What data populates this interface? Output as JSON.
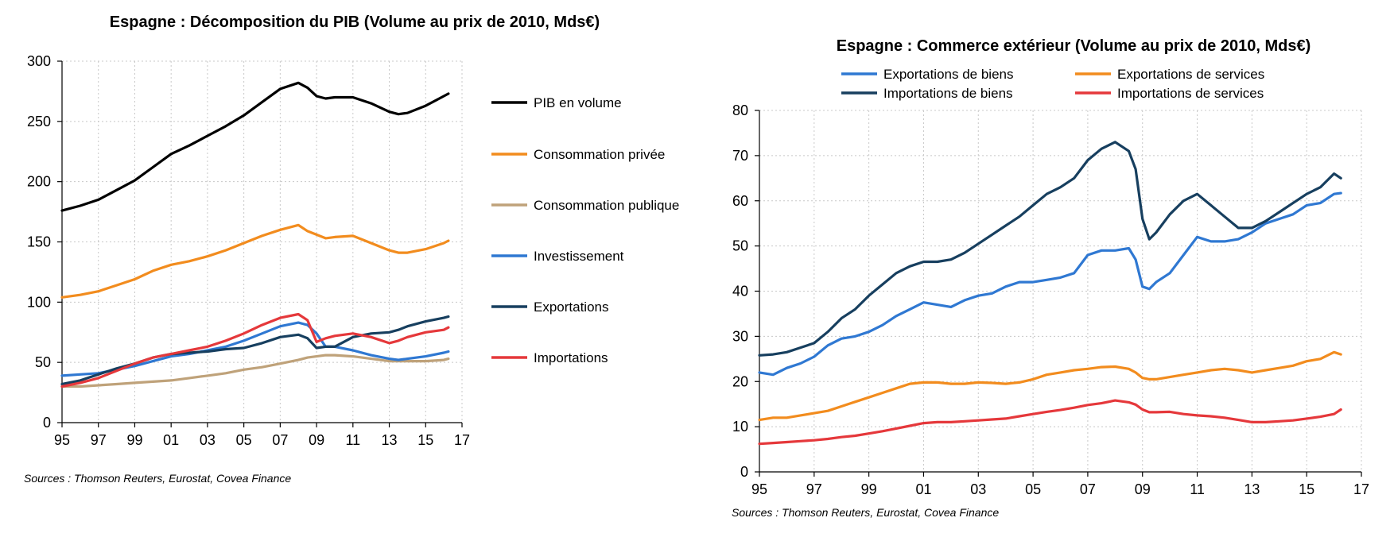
{
  "chart_data": [
    {
      "type": "line",
      "title": "Espagne : Décomposition du PIB (Volume au prix de 2010, Mds€)",
      "source": "Sources : Thomson Reuters, Eurostat, Covea Finance",
      "xlabel": "",
      "ylabel": "",
      "xlim": [
        1995,
        2017
      ],
      "ylim": [
        0,
        300
      ],
      "x_ticks": [
        "95",
        "97",
        "99",
        "01",
        "03",
        "05",
        "07",
        "09",
        "11",
        "13",
        "15",
        "17"
      ],
      "y_ticks": [
        "0",
        "50",
        "100",
        "150",
        "200",
        "250",
        "300"
      ],
      "grid": true,
      "legend_position": "right",
      "x": [
        1995,
        1996,
        1997,
        1998,
        1999,
        2000,
        2001,
        2002,
        2003,
        2004,
        2005,
        2006,
        2007,
        2008,
        2008.5,
        2009,
        2009.5,
        2010,
        2011,
        2012,
        2013,
        2013.5,
        2014,
        2015,
        2016,
        2016.25
      ],
      "series": [
        {
          "name": "PIB en volume",
          "color": "#000000",
          "values": [
            176,
            180,
            185,
            193,
            201,
            212,
            223,
            230,
            238,
            246,
            255,
            266,
            277,
            282,
            278,
            271,
            269,
            270,
            270,
            265,
            258,
            256,
            257,
            263,
            271,
            273
          ]
        },
        {
          "name": "Consommation privée",
          "color": "#f28c1e",
          "values": [
            104,
            106,
            109,
            114,
            119,
            126,
            131,
            134,
            138,
            143,
            149,
            155,
            160,
            164,
            159,
            156,
            153,
            154,
            155,
            149,
            143,
            141,
            141,
            144,
            149,
            151
          ]
        },
        {
          "name": "Consommation publique",
          "color": "#bfa27a",
          "values": [
            30,
            30,
            31,
            32,
            33,
            34,
            35,
            37,
            39,
            41,
            44,
            46,
            49,
            52,
            54,
            55,
            56,
            56,
            55,
            53,
            51,
            51,
            51,
            51,
            52,
            53
          ]
        },
        {
          "name": "Investissement",
          "color": "#2f78d2",
          "values": [
            39,
            40,
            41,
            44,
            47,
            51,
            55,
            57,
            60,
            63,
            68,
            74,
            80,
            83,
            81,
            74,
            63,
            63,
            60,
            56,
            53,
            52,
            53,
            55,
            58,
            59
          ]
        },
        {
          "name": "Exportations",
          "color": "#173f5f",
          "values": [
            32,
            35,
            40,
            45,
            49,
            54,
            57,
            58,
            59,
            61,
            62,
            66,
            71,
            73,
            70,
            62,
            63,
            63,
            71,
            74,
            75,
            77,
            80,
            84,
            87,
            88
          ]
        },
        {
          "name": "Importations",
          "color": "#e5383b",
          "values": [
            30,
            33,
            37,
            43,
            49,
            54,
            57,
            60,
            63,
            68,
            74,
            81,
            87,
            90,
            85,
            67,
            70,
            72,
            74,
            71,
            66,
            68,
            71,
            75,
            77,
            79
          ]
        }
      ]
    },
    {
      "type": "line",
      "title": "Espagne : Commerce extérieur (Volume au prix de 2010, Mds€)",
      "source": "Sources : Thomson Reuters, Eurostat, Covea Finance",
      "xlabel": "",
      "ylabel": "",
      "xlim": [
        1995,
        2017
      ],
      "ylim": [
        0,
        80
      ],
      "x_ticks": [
        "95",
        "97",
        "99",
        "01",
        "03",
        "05",
        "07",
        "09",
        "11",
        "13",
        "15",
        "17"
      ],
      "y_ticks": [
        "0",
        "10",
        "20",
        "30",
        "40",
        "50",
        "60",
        "70",
        "80"
      ],
      "grid": true,
      "legend_position": "top",
      "x": [
        1995,
        1995.5,
        1996,
        1996.5,
        1997,
        1997.5,
        1998,
        1998.5,
        1999,
        1999.5,
        2000,
        2000.5,
        2001,
        2001.5,
        2002,
        2002.5,
        2003,
        2003.5,
        2004,
        2004.5,
        2005,
        2005.5,
        2006,
        2006.5,
        2007,
        2007.5,
        2008,
        2008.5,
        2008.75,
        2009,
        2009.25,
        2009.5,
        2010,
        2010.5,
        2011,
        2011.5,
        2012,
        2012.5,
        2013,
        2013.5,
        2014,
        2014.5,
        2015,
        2015.5,
        2016,
        2016.25
      ],
      "series": [
        {
          "name": "Exportations de biens",
          "color": "#2f78d2",
          "values": [
            22,
            21.5,
            23,
            24,
            25.5,
            28,
            29.5,
            30,
            31,
            32.5,
            34.5,
            36,
            37.5,
            37,
            36.5,
            38,
            39,
            39.5,
            41,
            42,
            42,
            42.5,
            43,
            44,
            48,
            49,
            49,
            49.5,
            47,
            41,
            40.5,
            42,
            44,
            48,
            52,
            51,
            51,
            51.5,
            53,
            55,
            56,
            57,
            59,
            59.5,
            61.5,
            61.7
          ]
        },
        {
          "name": "Exportations de services",
          "color": "#f28c1e",
          "values": [
            11.5,
            12,
            12,
            12.5,
            13,
            13.5,
            14.5,
            15.5,
            16.5,
            17.5,
            18.5,
            19.5,
            19.8,
            19.8,
            19.5,
            19.5,
            19.8,
            19.7,
            19.5,
            19.8,
            20.5,
            21.5,
            22,
            22.5,
            22.8,
            23.2,
            23.3,
            22.8,
            22,
            20.8,
            20.5,
            20.5,
            21,
            21.5,
            22,
            22.5,
            22.8,
            22.5,
            22,
            22.5,
            23,
            23.5,
            24.5,
            25,
            26.5,
            26
          ]
        },
        {
          "name": "Importations de biens",
          "color": "#173f5f",
          "values": [
            25.8,
            26,
            26.5,
            27.5,
            28.5,
            31,
            34,
            36,
            39,
            41.5,
            44,
            45.5,
            46.5,
            46.5,
            47,
            48.5,
            50.5,
            52.5,
            54.5,
            56.5,
            59,
            61.5,
            63,
            65,
            69,
            71.5,
            73,
            71,
            67,
            56,
            51.5,
            53,
            57,
            60,
            61.5,
            59,
            56.5,
            54,
            54,
            55.5,
            57.5,
            59.5,
            61.5,
            63,
            66,
            65
          ]
        },
        {
          "name": "Importations de services",
          "color": "#e5383b",
          "values": [
            6.2,
            6.4,
            6.6,
            6.8,
            7,
            7.3,
            7.7,
            8,
            8.5,
            9,
            9.6,
            10.2,
            10.8,
            11,
            11,
            11.2,
            11.4,
            11.6,
            11.8,
            12.3,
            12.8,
            13.3,
            13.7,
            14.2,
            14.8,
            15.2,
            15.8,
            15.4,
            14.9,
            13.8,
            13.2,
            13.2,
            13.3,
            12.8,
            12.5,
            12.3,
            12,
            11.5,
            11,
            11,
            11.2,
            11.4,
            11.8,
            12.2,
            12.8,
            13.8
          ]
        }
      ]
    }
  ]
}
